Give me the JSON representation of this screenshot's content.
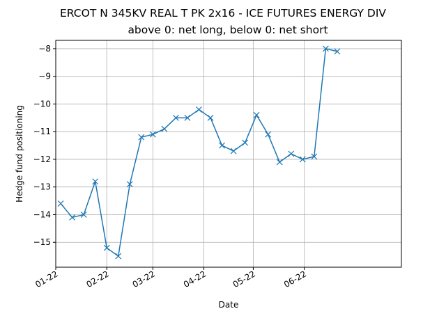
{
  "chart_data": {
    "type": "line",
    "title": "ERCOT N 345KV REAL T PK 2x16 - ICE FUTURES ENERGY DIV",
    "subtitle": "above 0: net long, below 0: net short",
    "xlabel": "Date",
    "ylabel": "Hedge fund positioning",
    "xlim": [
      "2022-01-01",
      "2022-07-30"
    ],
    "ylim": [
      -15.9,
      -7.7
    ],
    "x_ticks": [
      {
        "date": "2022-01-01",
        "label": "01-22"
      },
      {
        "date": "2022-02-01",
        "label": "02-22"
      },
      {
        "date": "2022-03-01",
        "label": "03-22"
      },
      {
        "date": "2022-04-01",
        "label": "04-22"
      },
      {
        "date": "2022-05-01",
        "label": "05-22"
      },
      {
        "date": "2022-06-01",
        "label": "06-22"
      }
    ],
    "y_ticks": [
      {
        "value": -15,
        "label": "−15"
      },
      {
        "value": -14,
        "label": "−14"
      },
      {
        "value": -13,
        "label": "−13"
      },
      {
        "value": -12,
        "label": "−12"
      },
      {
        "value": -11,
        "label": "−11"
      },
      {
        "value": -10,
        "label": "−10"
      },
      {
        "value": -9,
        "label": "−9"
      },
      {
        "value": -8,
        "label": "−8"
      }
    ],
    "grid": true,
    "color": "#1f77b4",
    "marker": "x",
    "x": [
      "2022-01-04",
      "2022-01-11",
      "2022-01-18",
      "2022-01-25",
      "2022-02-01",
      "2022-02-08",
      "2022-02-15",
      "2022-02-22",
      "2022-03-01",
      "2022-03-08",
      "2022-03-15",
      "2022-03-22",
      "2022-03-29",
      "2022-04-05",
      "2022-04-12",
      "2022-04-19",
      "2022-04-26",
      "2022-05-03",
      "2022-05-10",
      "2022-05-17",
      "2022-05-24",
      "2022-05-31",
      "2022-06-07",
      "2022-06-14",
      "2022-06-21"
    ],
    "y": [
      -13.6,
      -14.1,
      -14.0,
      -12.8,
      -15.2,
      -15.5,
      -12.9,
      -11.2,
      -11.1,
      -10.9,
      -10.5,
      -10.5,
      -10.2,
      -10.5,
      -11.5,
      -11.7,
      -11.4,
      -10.4,
      -11.1,
      -12.1,
      -11.8,
      -12.0,
      -11.9,
      -8.0,
      -8.1
    ]
  }
}
